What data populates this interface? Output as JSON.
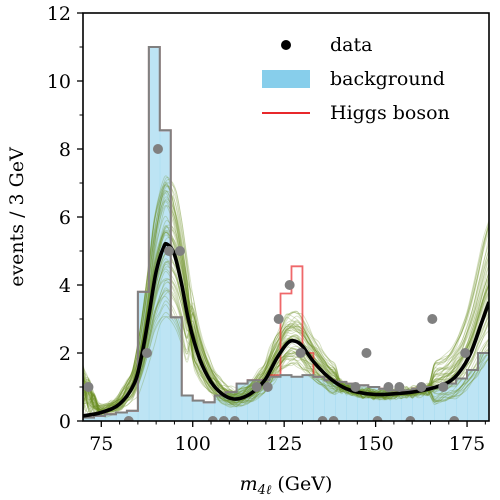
{
  "chart_data": {
    "type": "line",
    "title": "",
    "xlabel_main": "m",
    "xlabel_sub": "4ℓ",
    "xlabel_unit": " (GeV)",
    "ylabel": "events / 3 GeV",
    "xlim": [
      70,
      181
    ],
    "ylim": [
      0,
      12
    ],
    "grid": false,
    "legend_position": "top-right",
    "x_ticks": [
      75,
      100,
      125,
      150,
      175
    ],
    "y_ticks": [
      0,
      2,
      4,
      6,
      8,
      10,
      12
    ],
    "bin_edges": [
      70,
      73,
      76,
      79,
      82,
      85,
      88,
      91,
      94,
      97,
      100,
      103,
      106,
      109,
      112,
      115,
      118,
      121,
      124,
      127,
      130,
      133,
      136,
      139,
      142,
      145,
      148,
      151,
      154,
      157,
      160,
      163,
      166,
      169,
      172,
      175,
      178,
      181
    ],
    "series": [
      {
        "name": "data",
        "kind": "points",
        "color": "#808080",
        "x": [
          71.5,
          82.5,
          87.5,
          90.5,
          93.5,
          96.5,
          105.5,
          108.5,
          111.5,
          117.5,
          120.5,
          123.5,
          126.5,
          129.5,
          135.5,
          138.5,
          144.5,
          147.5,
          150.5,
          153.5,
          156.5,
          159.5,
          162.5,
          165.5,
          168.5,
          171.5,
          174.5
        ],
        "y": [
          1,
          0,
          2,
          8,
          5,
          5,
          0,
          0,
          0,
          1,
          1,
          3,
          4,
          2,
          0,
          0,
          1,
          2,
          0,
          1,
          1,
          0,
          1,
          3,
          1,
          0,
          2
        ]
      },
      {
        "name": "background",
        "kind": "histogram",
        "color": "#87ceeb",
        "values": [
          0.1,
          0.15,
          0.2,
          0.25,
          0.3,
          3.8,
          11.0,
          8.55,
          3.05,
          0.75,
          0.6,
          0.55,
          0.75,
          0.85,
          1.1,
          1.2,
          1.2,
          1.3,
          1.35,
          1.3,
          1.35,
          1.3,
          1.2,
          1.15,
          1.1,
          1.05,
          1.0,
          0.95,
          0.9,
          0.9,
          0.95,
          1.0,
          1.0,
          1.1,
          1.25,
          1.5,
          2.0
        ]
      },
      {
        "name": "Higgs boson",
        "kind": "histogram",
        "color": "#e8282b",
        "values": [
          0.1,
          0.15,
          0.2,
          0.25,
          0.3,
          3.8,
          11.0,
          8.55,
          3.05,
          0.75,
          0.6,
          0.55,
          0.75,
          0.85,
          1.1,
          1.2,
          1.2,
          1.35,
          3.75,
          4.55,
          2.0,
          1.3,
          1.2,
          1.15,
          1.1,
          1.05,
          1.0,
          0.95,
          0.9,
          0.9,
          0.95,
          1.0,
          1.0,
          1.1,
          1.25,
          1.5,
          2.0
        ]
      },
      {
        "kind": "fit",
        "color": "#000000",
        "x": [
          70,
          75,
          80,
          84,
          86,
          88,
          90,
          92,
          93,
          95,
          97,
          99,
          102,
          105,
          108,
          111,
          114,
          117,
          120,
          123,
          126,
          128,
          130,
          133,
          137,
          141,
          145,
          150,
          155,
          160,
          165,
          170,
          173,
          176,
          179,
          181
        ],
        "y": [
          0.15,
          0.25,
          0.5,
          1.1,
          1.9,
          3.1,
          4.4,
          5.1,
          5.2,
          4.9,
          4.0,
          2.9,
          1.8,
          1.15,
          0.8,
          0.65,
          0.7,
          0.9,
          1.25,
          1.85,
          2.3,
          2.35,
          2.2,
          1.75,
          1.3,
          1.0,
          0.85,
          0.78,
          0.8,
          0.85,
          0.95,
          1.15,
          1.45,
          2.0,
          2.9,
          3.5
        ]
      },
      {
        "kind": "posterior-samples",
        "color": "#6b8e23"
      }
    ],
    "legend": [
      {
        "label": "data",
        "marker": "dot",
        "color": "#000000"
      },
      {
        "label": "background",
        "marker": "patch",
        "color": "#87ceeb"
      },
      {
        "label": "Higgs boson",
        "marker": "line",
        "color": "#e8282b"
      }
    ]
  }
}
